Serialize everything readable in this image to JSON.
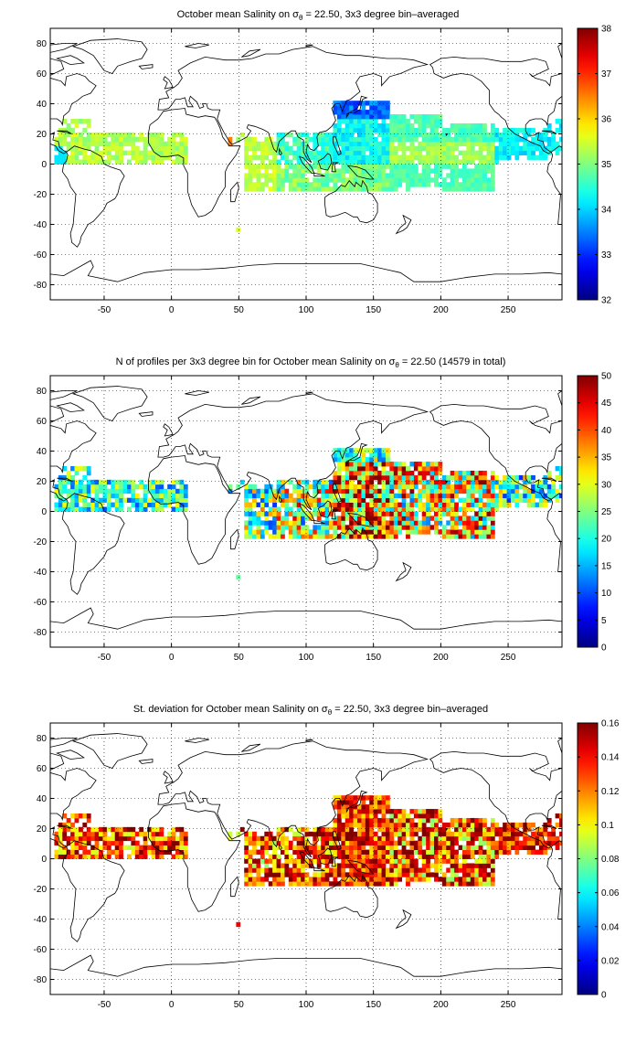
{
  "figure": {
    "panels": [
      {
        "title_pre": "October mean Salinity on σ",
        "title_sub": "θ",
        "title_post": " = 22.50, 3x3 degree bin–averaged",
        "colorbar": {
          "range": [
            32,
            38
          ],
          "ticks": [
            "32",
            "33",
            "34",
            "35",
            "36",
            "37",
            "38"
          ]
        },
        "cmap": "jet"
      },
      {
        "title_pre": "N of profiles per 3x3 degree bin for October mean Salinity on σ",
        "title_sub": "θ",
        "title_post": " = 22.50 (14579 in total)",
        "colorbar": {
          "range": [
            0,
            50
          ],
          "ticks": [
            "0",
            "5",
            "10",
            "15",
            "20",
            "25",
            "30",
            "35",
            "40",
            "45",
            "50"
          ]
        },
        "cmap": "jet"
      },
      {
        "title_pre": "St. deviation for October mean Salinity on σ",
        "title_sub": "θ",
        "title_post": " = 22.50, 3x3 degree bin–averaged",
        "colorbar": {
          "range": [
            0,
            0.16
          ],
          "ticks": [
            "0",
            "0.02",
            "0.04",
            "0.06",
            "0.08",
            "0.1",
            "0.12",
            "0.14",
            "0.16"
          ]
        },
        "cmap": "jet"
      }
    ],
    "map_axes": {
      "lon_range": [
        -90,
        290
      ],
      "lat_range": [
        -90,
        90
      ],
      "lon_ticks": [
        "-50",
        "0",
        "50",
        "100",
        "150",
        "200",
        "250"
      ],
      "lat_ticks": [
        "80",
        "60",
        "40",
        "20",
        "0",
        "-20",
        "-40",
        "-60",
        "-80"
      ],
      "grid": "dotted"
    }
  }
}
